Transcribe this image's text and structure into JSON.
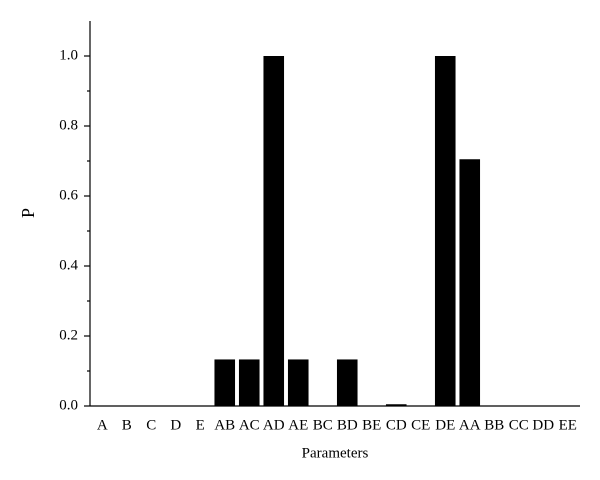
{
  "chart_data": {
    "type": "bar",
    "x_label": "Parameters",
    "y_label": "P",
    "categories": [
      "A",
      "B",
      "C",
      "D",
      "E",
      "AB",
      "AC",
      "AD",
      "AE",
      "BC",
      "BD",
      "BE",
      "CD",
      "CE",
      "DE",
      "AA",
      "BB",
      "CC",
      "DD",
      "EE"
    ],
    "values": [
      0,
      0,
      0,
      0,
      0,
      0.133,
      0.133,
      1.0,
      0.133,
      0,
      0.133,
      0,
      0.005,
      0,
      1.0,
      0.705,
      0,
      0,
      0,
      0
    ],
    "color": "#000000",
    "ylim": [
      0,
      1.1
    ],
    "yticks": [
      {
        "value": 0,
        "label": "0.0"
      },
      {
        "value": 0.2,
        "label": "0.2"
      },
      {
        "value": 0.4,
        "label": "0.4"
      },
      {
        "value": 0.6,
        "label": "0.6"
      },
      {
        "value": 0.8,
        "label": "0.8"
      },
      {
        "value": 1.0,
        "label": "1.0"
      }
    ],
    "grid": false
  }
}
